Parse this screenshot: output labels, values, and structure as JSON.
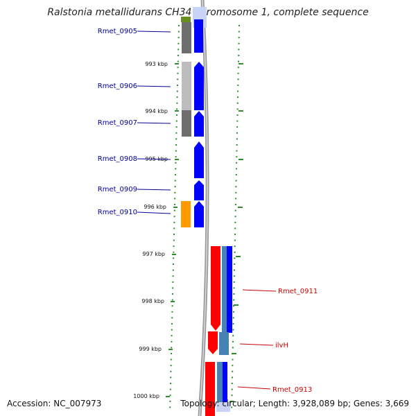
{
  "title": "Ralstonia metallidurans CH34 chromosome 1, complete sequence",
  "footer": {
    "accession": "Accession: NC_007973",
    "topology": "Topology: circular; Length: 3,928,089 bp; Genes: 3,669"
  },
  "colors": {
    "left_gene_label": "#000099",
    "right_gene_label": "#cc0000",
    "tick": "#2e8b2e",
    "backbone": "#888888",
    "forward_cds": "#0000ff",
    "reverse_cds": "#ff0000",
    "gene_gray_dark": "#707070",
    "gene_gray_light": "#bdbdbd",
    "gene_orange": "#ff9900",
    "gene_steelblue": "#4682b4",
    "gene_olive": "#6b8e23"
  },
  "scale_labels": [
    "993 kbp",
    "994 kbp",
    "995 kbp",
    "996 kbp",
    "997 kbp",
    "998 kbp",
    "999 kbp",
    "1000 kbp"
  ],
  "left_genes": [
    "Rmet_0905",
    "Rmet_0906",
    "Rmet_0907",
    "Rmet_0908",
    "Rmet_0909",
    "Rmet_0910"
  ],
  "right_genes": [
    "Rmet_0911",
    "ilvH",
    "Rmet_0913"
  ]
}
